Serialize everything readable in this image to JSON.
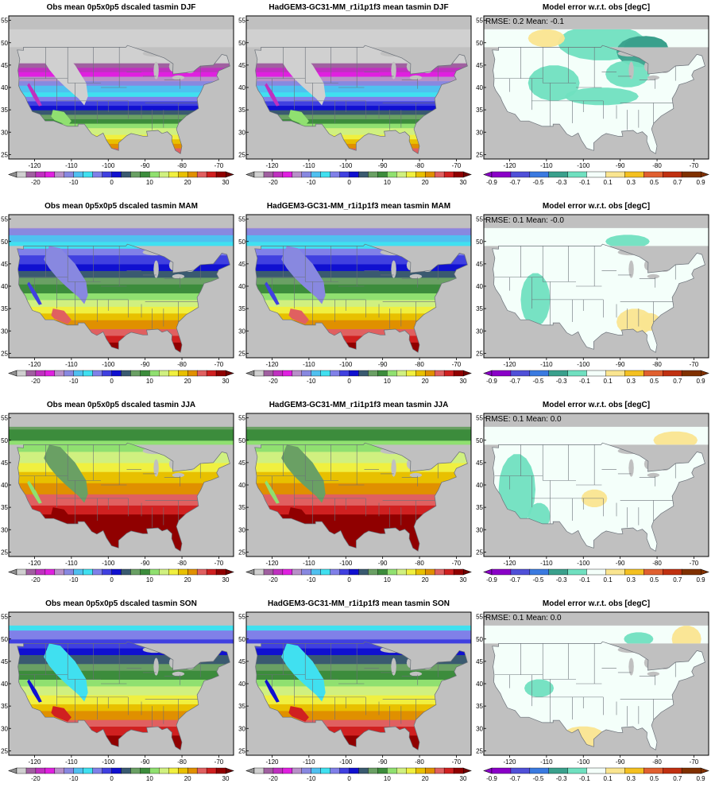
{
  "chart_data": [
    {
      "type": "heatmap",
      "title": "Obs mean 0p5x0p5 dscaled tasmin DJF",
      "xticks": [
        "-120",
        "-110",
        "-100",
        "-90",
        "-80",
        "-70"
      ],
      "yticks": [
        "25",
        "30",
        "35",
        "40",
        "45",
        "50",
        "55"
      ],
      "cbar_labels": [
        "-20",
        "-10",
        "0",
        "10",
        "20",
        "30"
      ],
      "season": "DJF",
      "panel": "obs"
    },
    {
      "type": "heatmap",
      "title": "HadGEM3-GC31-MM_r1i1p1f3 mean tasmin DJF",
      "xticks": [
        "-120",
        "-110",
        "-100",
        "-90",
        "-80",
        "-70"
      ],
      "yticks": [
        "25",
        "30",
        "35",
        "40",
        "45",
        "50",
        "55"
      ],
      "cbar_labels": [
        "-20",
        "-10",
        "0",
        "10",
        "20",
        "30"
      ],
      "season": "DJF",
      "panel": "model"
    },
    {
      "type": "heatmap",
      "title": "Model error w.r.t. obs [degC]",
      "stats": "RMSE: 0.2  Mean: -0.1",
      "xticks": [
        "-120",
        "-110",
        "-100",
        "-90",
        "-80",
        "-70"
      ],
      "yticks": [
        "25",
        "30",
        "35",
        "40",
        "45",
        "50",
        "55"
      ],
      "cbar_labels": [
        "-0.9",
        "-0.7",
        "-0.5",
        "-0.3",
        "-0.1",
        "0.1",
        "0.3",
        "0.5",
        "0.7",
        "0.9"
      ],
      "season": "DJF",
      "panel": "error"
    },
    {
      "type": "heatmap",
      "title": "Obs mean 0p5x0p5 dscaled tasmin MAM",
      "xticks": [
        "-120",
        "-110",
        "-100",
        "-90",
        "-80",
        "-70"
      ],
      "yticks": [
        "25",
        "30",
        "35",
        "40",
        "45",
        "50",
        "55"
      ],
      "cbar_labels": [
        "-20",
        "-10",
        "0",
        "10",
        "20",
        "30"
      ],
      "season": "MAM",
      "panel": "obs"
    },
    {
      "type": "heatmap",
      "title": "HadGEM3-GC31-MM_r1i1p1f3 mean tasmin MAM",
      "xticks": [
        "-120",
        "-110",
        "-100",
        "-90",
        "-80",
        "-70"
      ],
      "yticks": [
        "25",
        "30",
        "35",
        "40",
        "45",
        "50",
        "55"
      ],
      "cbar_labels": [
        "-20",
        "-10",
        "0",
        "10",
        "20",
        "30"
      ],
      "season": "MAM",
      "panel": "model"
    },
    {
      "type": "heatmap",
      "title": "Model error w.r.t. obs [degC]",
      "stats": "RMSE: 0.1  Mean: -0.0",
      "xticks": [
        "-120",
        "-110",
        "-100",
        "-90",
        "-80",
        "-70"
      ],
      "yticks": [
        "25",
        "30",
        "35",
        "40",
        "45",
        "50",
        "55"
      ],
      "cbar_labels": [
        "-0.9",
        "-0.7",
        "-0.5",
        "-0.3",
        "-0.1",
        "0.1",
        "0.3",
        "0.5",
        "0.7",
        "0.9"
      ],
      "season": "MAM",
      "panel": "error"
    },
    {
      "type": "heatmap",
      "title": "Obs mean 0p5x0p5 dscaled tasmin JJA",
      "xticks": [
        "-120",
        "-110",
        "-100",
        "-90",
        "-80",
        "-70"
      ],
      "yticks": [
        "25",
        "30",
        "35",
        "40",
        "45",
        "50",
        "55"
      ],
      "cbar_labels": [
        "-20",
        "-10",
        "0",
        "10",
        "20",
        "30"
      ],
      "season": "JJA",
      "panel": "obs"
    },
    {
      "type": "heatmap",
      "title": "HadGEM3-GC31-MM_r1i1p1f3 mean tasmin JJA",
      "xticks": [
        "-120",
        "-110",
        "-100",
        "-90",
        "-80",
        "-70"
      ],
      "yticks": [
        "25",
        "30",
        "35",
        "40",
        "45",
        "50",
        "55"
      ],
      "cbar_labels": [
        "-20",
        "-10",
        "0",
        "10",
        "20",
        "30"
      ],
      "season": "JJA",
      "panel": "model"
    },
    {
      "type": "heatmap",
      "title": "Model error w.r.t. obs [degC]",
      "stats": "RMSE: 0.1  Mean: 0.0",
      "xticks": [
        "-120",
        "-110",
        "-100",
        "-90",
        "-80",
        "-70"
      ],
      "yticks": [
        "25",
        "30",
        "35",
        "40",
        "45",
        "50",
        "55"
      ],
      "cbar_labels": [
        "-0.9",
        "-0.7",
        "-0.5",
        "-0.3",
        "-0.1",
        "0.1",
        "0.3",
        "0.5",
        "0.7",
        "0.9"
      ],
      "season": "JJA",
      "panel": "error"
    },
    {
      "type": "heatmap",
      "title": "Obs mean 0p5x0p5 dscaled tasmin SON",
      "xticks": [
        "-120",
        "-110",
        "-100",
        "-90",
        "-80",
        "-70"
      ],
      "yticks": [
        "25",
        "30",
        "35",
        "40",
        "45",
        "50",
        "55"
      ],
      "cbar_labels": [
        "-20",
        "-10",
        "0",
        "10",
        "20",
        "30"
      ],
      "season": "SON",
      "panel": "obs"
    },
    {
      "type": "heatmap",
      "title": "HadGEM3-GC31-MM_r1i1p1f3 mean tasmin SON",
      "xticks": [
        "-120",
        "-110",
        "-100",
        "-90",
        "-80",
        "-70"
      ],
      "yticks": [
        "25",
        "30",
        "35",
        "40",
        "45",
        "50",
        "55"
      ],
      "cbar_labels": [
        "-20",
        "-10",
        "0",
        "10",
        "20",
        "30"
      ],
      "season": "SON",
      "panel": "model"
    },
    {
      "type": "heatmap",
      "title": "Model error w.r.t. obs [degC]",
      "stats": "RMSE: 0.1  Mean: 0.0",
      "xticks": [
        "-120",
        "-110",
        "-100",
        "-90",
        "-80",
        "-70"
      ],
      "yticks": [
        "25",
        "30",
        "35",
        "40",
        "45",
        "50",
        "55"
      ],
      "cbar_labels": [
        "-0.9",
        "-0.7",
        "-0.5",
        "-0.3",
        "-0.1",
        "0.1",
        "0.3",
        "0.5",
        "0.7",
        "0.9"
      ],
      "season": "SON",
      "panel": "error"
    }
  ],
  "colors": {
    "temp": [
      "#d0d0d0",
      "#a060a0",
      "#c030c0",
      "#e020e0",
      "#b890c8",
      "#8888e0",
      "#50c0f0",
      "#40e0f0",
      "#8080e8",
      "#4040e0",
      "#1010d0",
      "#3a5a70",
      "#6aa064",
      "#3c8c3c",
      "#90e070",
      "#d0f080",
      "#f0f040",
      "#e8c000",
      "#e09000",
      "#e06060",
      "#d02020",
      "#900000"
    ],
    "error": [
      "#8a00c8",
      "#5050d8",
      "#3a7ae0",
      "#3aa08c",
      "#70e0c0",
      "#f4fffa",
      "#fae590",
      "#f4c020",
      "#e06030",
      "#c03010",
      "#803000"
    ],
    "land_mask": "#c0c0c0"
  }
}
